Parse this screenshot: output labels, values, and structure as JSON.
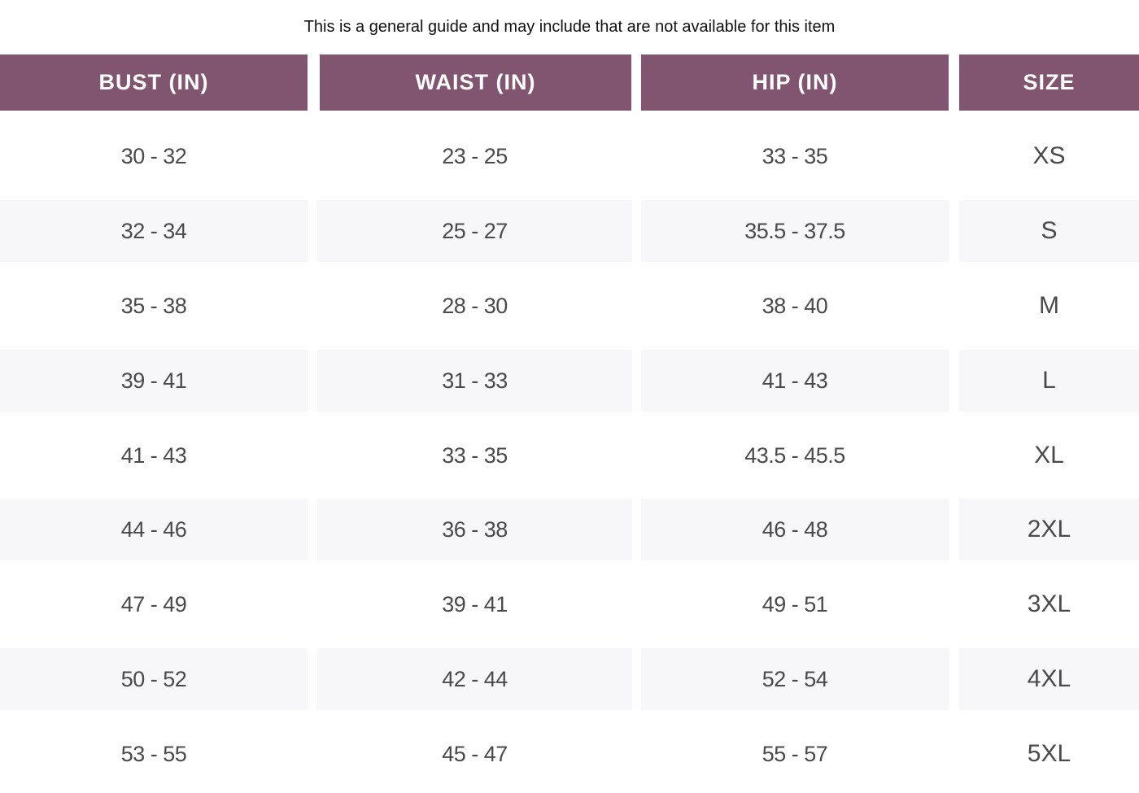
{
  "caption": "This is a general guide and may include that are not available for this item",
  "colors": {
    "header_bg": "#81546f",
    "header_text": "#ffffff",
    "stripe": "#f7f6f8",
    "value_text": "#4a4a4a"
  },
  "headers": [
    "BUST (IN)",
    "WAIST (IN)",
    "HIP (IN)",
    "SIZE"
  ],
  "rows": [
    [
      "30 - 32",
      "23 - 25",
      "33 - 35",
      "XS"
    ],
    [
      "32 - 34",
      "25 - 27",
      "35.5 - 37.5",
      "S"
    ],
    [
      "35 - 38",
      "28 - 30",
      "38 - 40",
      "M"
    ],
    [
      "39 - 41",
      "31 - 33",
      "41 - 43",
      "L"
    ],
    [
      "41 - 43",
      "33 - 35",
      "43.5 - 45.5",
      "XL"
    ],
    [
      "44 - 46",
      "36 - 38",
      "46 - 48",
      "2XL"
    ],
    [
      "47 - 49",
      "39 - 41",
      "49 - 51",
      "3XL"
    ],
    [
      "50 - 52",
      "42 - 44",
      "52 - 54",
      "4XL"
    ],
    [
      "53 - 55",
      "45 - 47",
      "55 - 57",
      "5XL"
    ]
  ]
}
